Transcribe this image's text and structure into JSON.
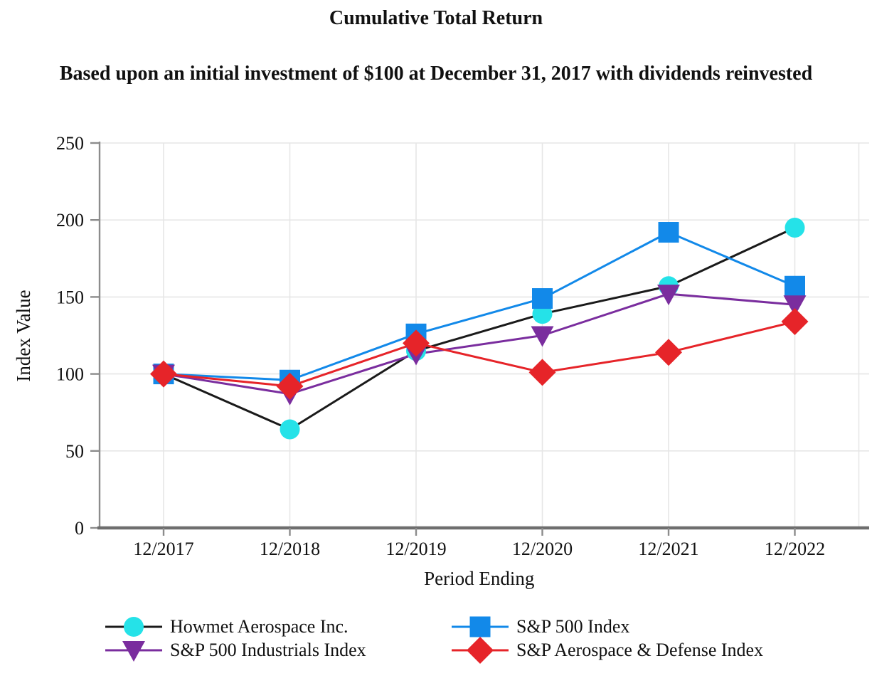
{
  "title": "Cumulative Total Return",
  "subtitle": "Based upon an initial investment of $100 at December 31, 2017 with dividends reinvested",
  "chart_data": {
    "type": "line",
    "categories": [
      "12/2017",
      "12/2018",
      "12/2019",
      "12/2020",
      "12/2021",
      "12/2022"
    ],
    "series": [
      {
        "name": "Howmet Aerospace Inc.",
        "marker": "circle",
        "line_color": "#1a1a1a",
        "marker_color": "#25e2e8",
        "values": [
          100,
          64,
          115,
          139,
          157,
          195
        ]
      },
      {
        "name": "S&P 500 Index",
        "marker": "square",
        "line_color": "#1289e9",
        "marker_color": "#1289e9",
        "values": [
          100,
          96,
          126,
          149,
          192,
          157
        ]
      },
      {
        "name": "S&P 500 Industrials Index",
        "marker": "triangle-down",
        "line_color": "#7a2d9e",
        "marker_color": "#7a2d9e",
        "values": [
          100,
          87,
          113,
          125,
          152,
          145
        ]
      },
      {
        "name": "S&P Aerospace & Defense Index",
        "marker": "diamond",
        "line_color": "#e62429",
        "marker_color": "#e62429",
        "values": [
          100,
          92,
          120,
          101,
          114,
          134
        ]
      }
    ],
    "xlabel": "Period Ending",
    "ylabel": "Index Value",
    "ylim": [
      0,
      250
    ],
    "yticks": [
      0,
      50,
      100,
      150,
      200,
      250
    ],
    "grid": true,
    "legend_position": "bottom"
  },
  "colors": {
    "gridline": "#e6e6e6",
    "axis": "#8c8c8c",
    "x_axis_line": "#6e6e6e",
    "text": "#111111"
  }
}
